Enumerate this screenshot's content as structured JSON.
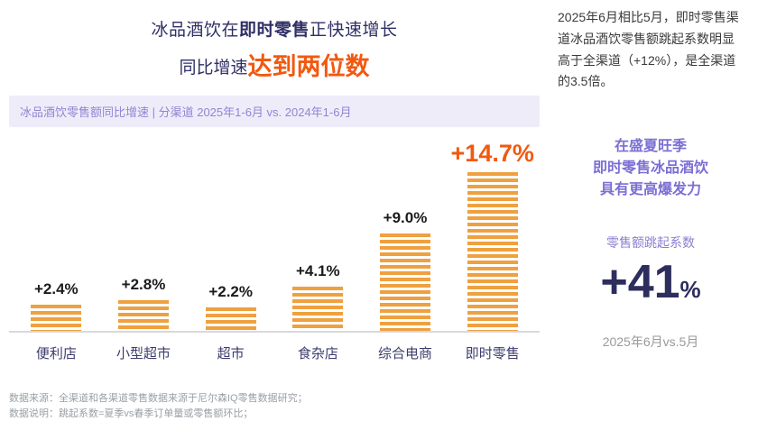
{
  "colors": {
    "accent_orange": "#f2590f",
    "bar_orange": "#efa03f",
    "purple": "#7b6fd4",
    "navy": "#2f2f66",
    "band_bg": "#efecfa"
  },
  "title": {
    "line1_pre": "冰品酒饮在",
    "line1_bold": "即时零售",
    "line1_post": "正快速增长",
    "line2_pre": "同比增速",
    "line2_accent": "达到两位数"
  },
  "subtitle": {
    "full": "冰品酒饮零售额同比增速 | 分渠道 2025年1-6月 vs. 2024年1-6月"
  },
  "chart_data": {
    "type": "bar",
    "title": "冰品酒饮零售额同比增速",
    "scope": "分渠道 2025年1-6月 vs. 2024年1-6月",
    "categories": [
      "便利店",
      "小型超市",
      "超市",
      "食杂店",
      "综合电商",
      "即时零售"
    ],
    "values": [
      2.4,
      2.8,
      2.2,
      4.1,
      9.0,
      14.7
    ],
    "labels": [
      "+2.4%",
      "+2.8%",
      "+2.2%",
      "+4.1%",
      "+9.0%",
      "+14.7%"
    ],
    "highlight_index": 5,
    "ylim": [
      0,
      16
    ],
    "grid": false,
    "legend": "none"
  },
  "footnotes": {
    "line1": "数据来源：全渠道和各渠道零售数据来源于尼尔森IQ零售数据研究；",
    "line2": "数据说明：跳起系数=夏季vs春季订单量或零售额环比；"
  },
  "right": {
    "paragraph": "2025年6月相比5月，即时零售渠道冰品酒饮零售额跳起系数明显高于全渠道（+12%），是全渠道的3.5倍。",
    "headline_line1": "在盛夏旺季",
    "headline_line2": "即时零售冰品酒饮",
    "headline_line3": "具有更高爆发力",
    "metric_label": "零售额跳起系数",
    "metric_value": "+41",
    "metric_unit": "%",
    "metric_period": "2025年6月vs.5月"
  }
}
